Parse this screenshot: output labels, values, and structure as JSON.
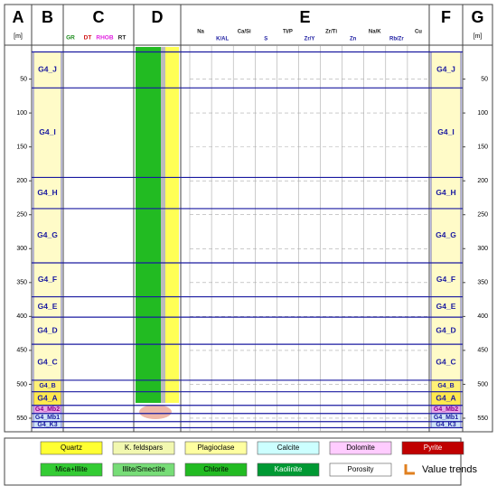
{
  "columns": [
    "A",
    "B",
    "C",
    "D",
    "E",
    "F",
    "G"
  ],
  "depth_unit": "[m]",
  "log_curves": [
    {
      "name": "GR",
      "color": "#1a8a1a"
    },
    {
      "name": "DT",
      "color": "#d01010"
    },
    {
      "name": "RHOB",
      "color": "#e020e0"
    },
    {
      "name": "RT",
      "color": "#202020"
    }
  ],
  "element_tracks": [
    "Na",
    "K/AL",
    "Ca/Si",
    "S",
    "Ti/P",
    "Zr/Y",
    "Zr/Ti",
    "Zn",
    "Na/K",
    "Rb/Zr",
    "Cu"
  ],
  "depth_axis": {
    "ylim": [
      0,
      570
    ],
    "yticks": [
      50,
      100,
      150,
      200,
      250,
      300,
      350,
      400,
      450,
      500,
      550
    ]
  },
  "zones": [
    {
      "name": "G4_J",
      "top": 10,
      "bottom": 63,
      "color": "#fffbc8"
    },
    {
      "name": "G4_I",
      "top": 63,
      "bottom": 195,
      "color": "#fffbc8"
    },
    {
      "name": "G4_H",
      "top": 195,
      "bottom": 241,
      "color": "#fffbc8"
    },
    {
      "name": "G4_G",
      "top": 241,
      "bottom": 321,
      "color": "#fffbc8"
    },
    {
      "name": "G4_F",
      "top": 321,
      "bottom": 371,
      "color": "#fffbc8"
    },
    {
      "name": "G4_E",
      "top": 371,
      "bottom": 401,
      "color": "#fffbc8"
    },
    {
      "name": "G4_D",
      "top": 401,
      "bottom": 441,
      "color": "#fffbc8"
    },
    {
      "name": "G4_C",
      "top": 441,
      "bottom": 494,
      "color": "#fffbc8"
    },
    {
      "name": "G4_B",
      "top": 494,
      "bottom": 511,
      "color": "#fff176"
    },
    {
      "name": "G4_A",
      "top": 511,
      "bottom": 531,
      "color": "#ffe94d"
    },
    {
      "name": "G4_Mb2",
      "top": 531,
      "bottom": 543,
      "color": "#e8a8e8"
    },
    {
      "name": "G4_Mb1",
      "top": 543,
      "bottom": 555,
      "color": "#cfe4f7"
    },
    {
      "name": "G4_K3",
      "top": 555,
      "bottom": 564,
      "color": "#cfe4f7"
    }
  ],
  "legend": [
    {
      "label": "Quartz",
      "color": "#ffff33"
    },
    {
      "label": "K. feldspars",
      "color": "#f2f8b0"
    },
    {
      "label": "Plagioclase",
      "color": "#ffffa0"
    },
    {
      "label": "Calcite",
      "color": "#ccffff"
    },
    {
      "label": "Dolomite",
      "color": "#ffccff"
    },
    {
      "label": "Pyrite",
      "color": "#c00000"
    },
    {
      "label": "Mica+Illite",
      "color": "#33cc33"
    },
    {
      "label": "Illite/Smectite",
      "color": "#77dd77"
    },
    {
      "label": "Chlorite",
      "color": "#22bb22"
    },
    {
      "label": "Kaolinite",
      "color": "#009933"
    },
    {
      "label": "Porosity",
      "color": "#ffffff"
    },
    {
      "label": "Value trends",
      "color": "#e08020"
    }
  ]
}
